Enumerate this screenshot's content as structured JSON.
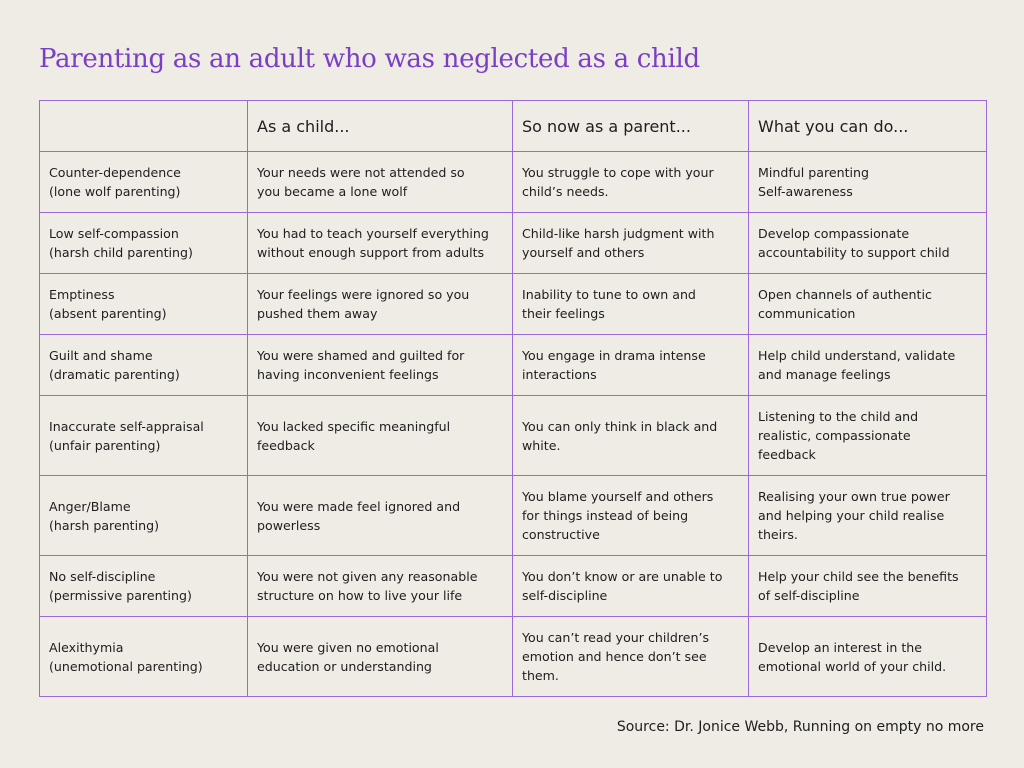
{
  "title": "Parenting as an adult who was neglected as a child",
  "colors": {
    "title": "#7b3fc6",
    "border": "#9b6ad8",
    "background": "#efebe5"
  },
  "table": {
    "headers": [
      "",
      "As a child...",
      "So now as a parent...",
      "What you can do..."
    ],
    "rows": [
      {
        "tall": false,
        "cells": [
          [
            "Counter-dependence",
            "(lone wolf parenting)"
          ],
          [
            "Your needs were not attended so",
            "you became a lone wolf"
          ],
          [
            "You struggle to cope with your",
            "child’s needs."
          ],
          [
            "Mindful parenting",
            "Self-awareness"
          ]
        ]
      },
      {
        "tall": false,
        "cells": [
          [
            "Low self-compassion",
            "(harsh child parenting)"
          ],
          [
            "You had to teach yourself everything",
            "without enough support from adults"
          ],
          [
            "Child-like harsh judgment with",
            "yourself and others"
          ],
          [
            "Develop compassionate",
            "accountability to support child"
          ]
        ]
      },
      {
        "tall": false,
        "cells": [
          [
            "Emptiness",
            "(absent parenting)"
          ],
          [
            "Your feelings were ignored so you",
            "pushed them away"
          ],
          [
            "Inability to tune to own and",
            "their feelings"
          ],
          [
            "Open channels of authentic",
            "communication"
          ]
        ]
      },
      {
        "tall": false,
        "cells": [
          [
            "Guilt and shame",
            "(dramatic parenting)"
          ],
          [
            "You were shamed and guilted for",
            "having inconvenient feelings"
          ],
          [
            "You engage in drama intense",
            "interactions"
          ],
          [
            "Help child understand, validate",
            "and manage feelings"
          ]
        ]
      },
      {
        "tall": true,
        "cells": [
          [
            "Inaccurate self-appraisal",
            "(unfair parenting)"
          ],
          [
            "You lacked specific meaningful",
            "feedback"
          ],
          [
            "You can only think in black and",
            "white."
          ],
          [
            "Listening to the child and",
            "realistic, compassionate",
            "feedback"
          ]
        ]
      },
      {
        "tall": true,
        "cells": [
          [
            "Anger/Blame",
            "(harsh parenting)"
          ],
          [
            "You were made feel ignored and",
            "powerless"
          ],
          [
            "You blame yourself and others",
            "for things instead of being",
            "constructive"
          ],
          [
            "Realising your own true power",
            "and helping your child realise",
            "theirs."
          ]
        ]
      },
      {
        "tall": false,
        "cells": [
          [
            "No self-discipline",
            "(permissive parenting)"
          ],
          [
            "You were not given any reasonable",
            "structure on how to live your life"
          ],
          [
            "You don’t know or are unable to",
            "self-discipline"
          ],
          [
            "Help your child see the benefits",
            "of self-discipline"
          ]
        ]
      },
      {
        "tall": true,
        "cells": [
          [
            "Alexithymia",
            "(unemotional parenting)"
          ],
          [
            "You were given no emotional",
            "education or understanding"
          ],
          [
            "You can’t read your children’s",
            "emotion and hence don’t see",
            "them."
          ],
          [
            "Develop an interest in the",
            "emotional world of your child."
          ]
        ]
      }
    ]
  },
  "source": "Source: Dr. Jonice Webb, Running on empty no more"
}
